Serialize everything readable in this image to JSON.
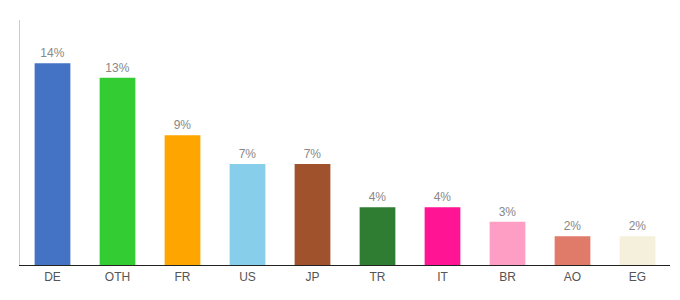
{
  "chart_data": {
    "type": "bar",
    "categories": [
      "DE",
      "OTH",
      "FR",
      "US",
      "JP",
      "TR",
      "IT",
      "BR",
      "AO",
      "EG"
    ],
    "values": [
      14,
      13,
      9,
      7,
      7,
      4,
      4,
      3,
      2,
      2
    ],
    "value_labels": [
      "14%",
      "13%",
      "9%",
      "7%",
      "7%",
      "4%",
      "4%",
      "3%",
      "2%",
      "2%"
    ],
    "data_labels": true,
    "colors": [
      "#4472C4",
      "#33CC33",
      "#FFA500",
      "#87CEEB",
      "#A0522D",
      "#2E7D32",
      "#FF1493",
      "#FF9EC4",
      "#E07B6A",
      "#F5F0DC"
    ],
    "ylim": [
      0,
      17
    ],
    "grid": false,
    "tick_labels": "x"
  }
}
